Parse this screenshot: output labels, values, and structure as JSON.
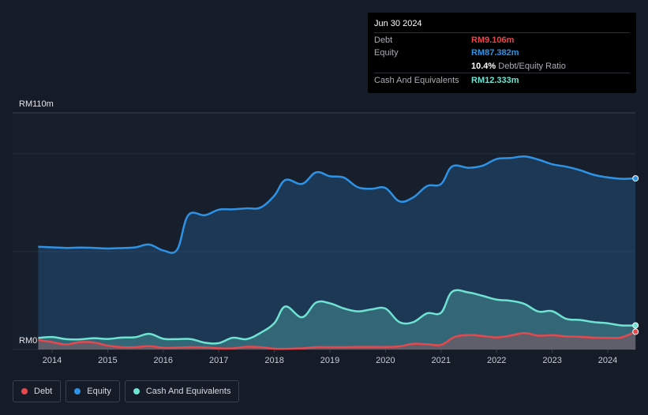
{
  "tooltip": {
    "date": "Jun 30 2024",
    "debt_label": "Debt",
    "debt_value": "RM9.106m",
    "equity_label": "Equity",
    "equity_value": "RM87.382m",
    "ratio_value": "10.4%",
    "ratio_label": "Debt/Equity Ratio",
    "cash_label": "Cash And Equivalents",
    "cash_value": "RM12.333m"
  },
  "legend": {
    "debt": "Debt",
    "equity": "Equity",
    "cash": "Cash And Equivalents"
  },
  "colors": {
    "debt": "#e5484d",
    "equity": "#2e93e6",
    "cash": "#6ee3d2",
    "background": "#151b27"
  },
  "chart_data": {
    "type": "area",
    "title": "",
    "ylabel": "",
    "xlabel": "",
    "ylim": [
      0,
      110
    ],
    "y_tick_labels": [
      "RM110m",
      "RM0"
    ],
    "x_ticks": [
      2014,
      2015,
      2016,
      2017,
      2018,
      2019,
      2020,
      2021,
      2022,
      2023,
      2024
    ],
    "x_tick_labels": [
      "2014",
      "2015",
      "2016",
      "2017",
      "2018",
      "2019",
      "2020",
      "2021",
      "2022",
      "2023",
      "2024"
    ],
    "xlim": [
      2013.7,
      2024.5
    ],
    "series": [
      {
        "name": "Equity",
        "x": [
          2013.75,
          2014.0,
          2014.25,
          2014.5,
          2014.75,
          2015.0,
          2015.25,
          2015.5,
          2015.75,
          2016.0,
          2016.25,
          2016.45,
          2016.75,
          2017.0,
          2017.25,
          2017.5,
          2017.75,
          2018.0,
          2018.2,
          2018.5,
          2018.75,
          2019.0,
          2019.25,
          2019.5,
          2019.75,
          2020.0,
          2020.25,
          2020.5,
          2020.75,
          2021.0,
          2021.2,
          2021.5,
          2021.75,
          2022.0,
          2022.25,
          2022.5,
          2022.75,
          2023.0,
          2023.25,
          2023.5,
          2023.75,
          2024.0,
          2024.25,
          2024.5
        ],
        "values": [
          52.5,
          52.2,
          51.9,
          52.1,
          51.9,
          51.6,
          51.8,
          52.2,
          53.6,
          50.6,
          51.0,
          68.6,
          68.6,
          71.4,
          71.6,
          72.1,
          72.5,
          78.6,
          86.6,
          84.6,
          90.5,
          88.5,
          87.8,
          82.9,
          82.1,
          82.5,
          75.7,
          77.7,
          83.5,
          84.5,
          93.5,
          92.8,
          93.9,
          97.3,
          97.8,
          98.6,
          97.0,
          94.6,
          93.4,
          91.6,
          89.2,
          87.9,
          87.2,
          87.4
        ]
      },
      {
        "name": "Cash And Equivalents",
        "x": [
          2013.75,
          2014.0,
          2014.25,
          2014.5,
          2014.75,
          2015.0,
          2015.25,
          2015.5,
          2015.75,
          2016.0,
          2016.25,
          2016.5,
          2016.75,
          2017.0,
          2017.25,
          2017.5,
          2017.75,
          2018.0,
          2018.2,
          2018.5,
          2018.75,
          2019.0,
          2019.25,
          2019.5,
          2019.75,
          2020.0,
          2020.25,
          2020.5,
          2020.75,
          2021.0,
          2021.2,
          2021.5,
          2021.75,
          2022.0,
          2022.25,
          2022.5,
          2022.75,
          2023.0,
          2023.25,
          2023.5,
          2023.75,
          2024.0,
          2024.25,
          2024.5
        ],
        "values": [
          5.9,
          6.4,
          5.3,
          5.2,
          5.8,
          5.4,
          6.1,
          6.3,
          8.0,
          5.5,
          5.3,
          5.3,
          3.5,
          3.3,
          6.0,
          5.3,
          8.5,
          13.5,
          22.0,
          16.5,
          24.0,
          23.6,
          21.0,
          19.5,
          20.5,
          20.9,
          14.0,
          14.0,
          18.5,
          18.8,
          29.5,
          29.1,
          27.4,
          25.5,
          24.9,
          23.3,
          19.4,
          19.6,
          15.7,
          15.1,
          14.0,
          13.4,
          12.3,
          12.3
        ]
      },
      {
        "name": "Debt",
        "x": [
          2013.75,
          2014.0,
          2014.25,
          2014.5,
          2014.75,
          2015.0,
          2015.25,
          2015.5,
          2015.75,
          2016.0,
          2016.25,
          2016.5,
          2016.75,
          2017.0,
          2017.25,
          2017.5,
          2017.75,
          2018.0,
          2018.25,
          2018.5,
          2018.75,
          2019.0,
          2019.25,
          2019.5,
          2019.75,
          2020.0,
          2020.25,
          2020.5,
          2020.75,
          2021.0,
          2021.25,
          2021.5,
          2021.75,
          2022.0,
          2022.25,
          2022.5,
          2022.75,
          2023.0,
          2023.25,
          2023.5,
          2023.75,
          2024.0,
          2024.25,
          2024.5
        ],
        "values": [
          4.9,
          3.8,
          2.6,
          3.8,
          3.6,
          2.0,
          1.2,
          1.2,
          1.7,
          0.9,
          1.0,
          1.2,
          1.1,
          0.6,
          0.6,
          1.4,
          1.2,
          0.4,
          0.4,
          0.6,
          1.2,
          1.2,
          1.2,
          1.3,
          1.3,
          1.3,
          1.6,
          2.9,
          2.7,
          2.4,
          6.5,
          7.4,
          6.9,
          6.2,
          7.1,
          8.4,
          7.1,
          7.3,
          6.7,
          6.5,
          6.1,
          6.0,
          6.2,
          9.1
        ]
      }
    ]
  }
}
